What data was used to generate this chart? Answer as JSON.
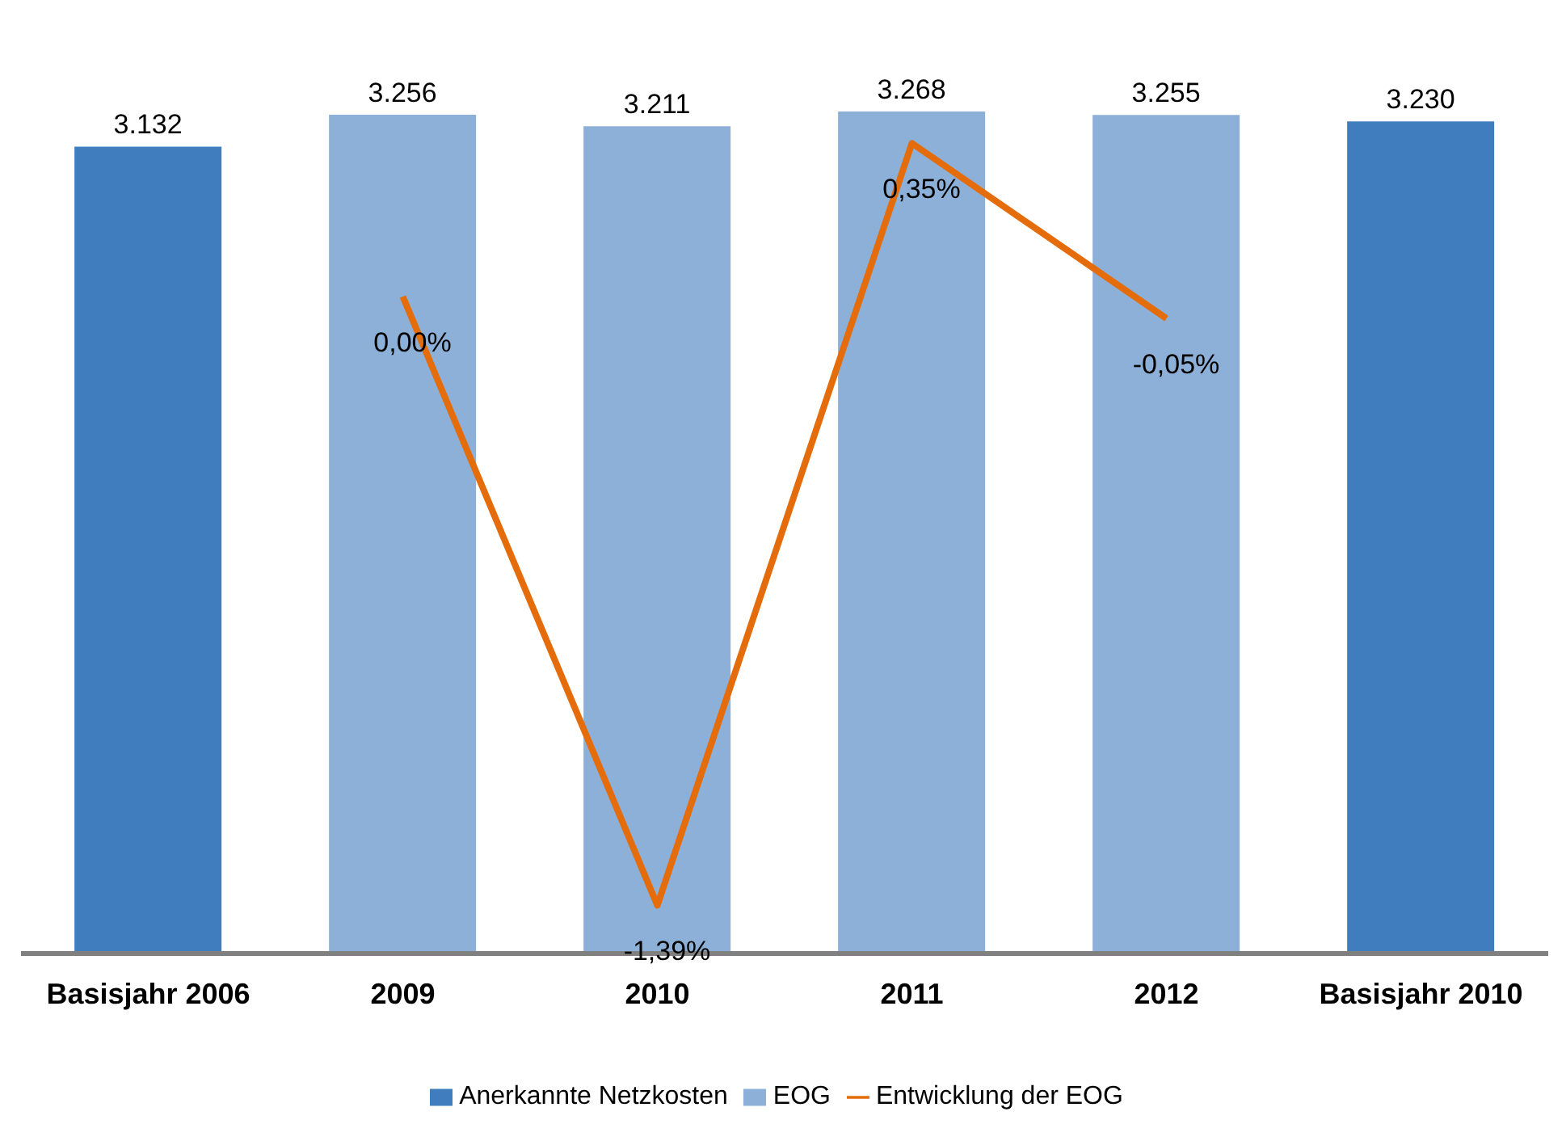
{
  "chart_data": {
    "type": "bar",
    "stacked": true,
    "categories": [
      "Basisjahr 2006",
      "2009",
      "2010",
      "2011",
      "2012",
      "Basisjahr 2010"
    ],
    "series": [
      {
        "name": "Anerkannte Netzkosten",
        "color": "#3f7dbf",
        "values": [
          3132,
          null,
          null,
          null,
          null,
          3230
        ],
        "value_labels": [
          "3.132",
          null,
          null,
          null,
          null,
          "3.230"
        ]
      },
      {
        "name": "EOG",
        "color": "#8db0d8",
        "values": [
          null,
          3256,
          3211,
          3268,
          3255,
          null
        ],
        "value_labels": [
          null,
          "3.256",
          "3.211",
          "3.268",
          "3.255",
          null
        ]
      },
      {
        "name": "Entwicklung der EOG",
        "type": "line",
        "axis": "y2",
        "color": "#e46c0a",
        "values": [
          null,
          0.0,
          -1.39,
          0.35,
          -0.05,
          null
        ],
        "value_labels": [
          null,
          "0,00%",
          "-1,39%",
          "0,35%",
          "-0,05%",
          null
        ]
      }
    ],
    "tick_labels": "x",
    "legend": "bottom",
    "marker": "none"
  }
}
